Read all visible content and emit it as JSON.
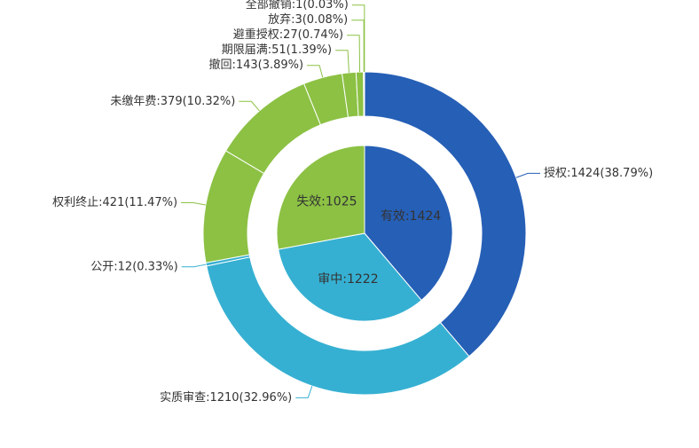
{
  "chart_data": {
    "type": "pie",
    "title": "",
    "inner_ring": {
      "slices": [
        {
          "label": "有效:1424",
          "category": "有效",
          "value": 1424,
          "color": "#265fb6"
        },
        {
          "label": "审中:1222",
          "category": "审中",
          "value": 1222,
          "color": "#36b0d2"
        },
        {
          "label": "失效:1025",
          "category": "失效",
          "value": 1025,
          "color": "#8cc144"
        }
      ]
    },
    "outer_ring": {
      "slices": [
        {
          "label": "授权:1424(38.79%)",
          "category": "授权",
          "value": 1424,
          "percent": 38.79,
          "parent": "有效",
          "color": "#265fb6"
        },
        {
          "label": "实质审查:1210(32.96%)",
          "category": "实质审查",
          "value": 1210,
          "percent": 32.96,
          "parent": "审中",
          "color": "#36b0d2"
        },
        {
          "label": "公开:12(0.33%)",
          "category": "公开",
          "value": 12,
          "percent": 0.33,
          "parent": "审中",
          "color": "#36b0d2"
        },
        {
          "label": "权利终止:421(11.47%)",
          "category": "权利终止",
          "value": 421,
          "percent": 11.47,
          "parent": "失效",
          "color": "#8cc144"
        },
        {
          "label": "未缴年费:379(10.32%)",
          "category": "未缴年费",
          "value": 379,
          "percent": 10.32,
          "parent": "失效",
          "color": "#8cc144"
        },
        {
          "label": "撤回:143(3.89%)",
          "category": "撤回",
          "value": 143,
          "percent": 3.89,
          "parent": "失效",
          "color": "#8cc144"
        },
        {
          "label": "期限届满:51(1.39%)",
          "category": "期限届满",
          "value": 51,
          "percent": 1.39,
          "parent": "失效",
          "color": "#8cc144"
        },
        {
          "label": "避重授权:27(0.74%)",
          "category": "避重授权",
          "value": 27,
          "percent": 0.74,
          "parent": "失效",
          "color": "#8cc144"
        },
        {
          "label": "放弃:3(0.08%)",
          "category": "放弃",
          "value": 3,
          "percent": 0.08,
          "parent": "失效",
          "color": "#8cc144"
        },
        {
          "label": "全部撤销:1(0.03%)",
          "category": "全部撤销",
          "value": 1,
          "percent": 0.03,
          "parent": "失效",
          "color": "#8cc144"
        }
      ]
    }
  }
}
